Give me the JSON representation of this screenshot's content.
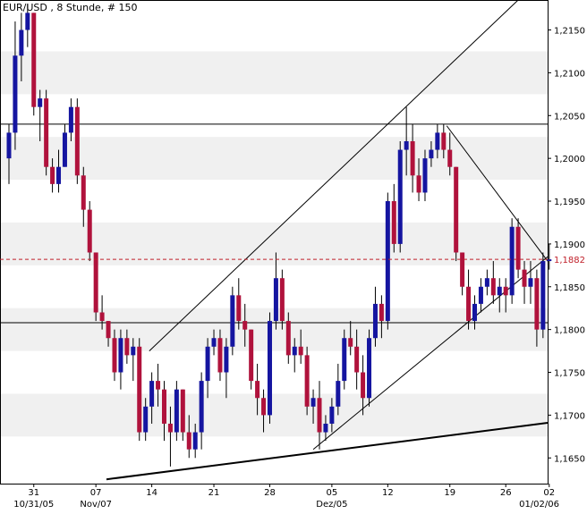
{
  "chart_data": {
    "type": "candlestick",
    "title": "EUR/USD , 8 Stunde, # 150",
    "price_label": "1,1882",
    "current_price": 1.1882,
    "ylim": [
      1.162,
      1.2185
    ],
    "y_ticks": [
      1.165,
      1.17,
      1.175,
      1.18,
      1.185,
      1.19,
      1.195,
      1.2,
      1.205,
      1.21,
      1.215
    ],
    "y_tick_labels": [
      "1,1650",
      "1,1700",
      "1,1750",
      "1,1800",
      "1,1850",
      "1,1900",
      "1,1950",
      "1,2000",
      "1,2050",
      "1,2100",
      "1,2150"
    ],
    "x_tick_labels": [
      {
        "text": "31",
        "bar": 4
      },
      {
        "text": "07",
        "bar": 14
      },
      {
        "text": "14",
        "bar": 23
      },
      {
        "text": "21",
        "bar": 33
      },
      {
        "text": "28",
        "bar": 42
      },
      {
        "text": "05",
        "bar": 52
      },
      {
        "text": "12",
        "bar": 61
      },
      {
        "text": "19",
        "bar": 71
      },
      {
        "text": "26",
        "bar": 80
      },
      {
        "text": "02",
        "bar": 87
      }
    ],
    "x_period_labels": [
      {
        "text": "10/31/05",
        "bar": 4
      },
      {
        "text": "Nov/07",
        "bar": 14
      },
      {
        "text": "Dez/05",
        "bar": 52
      },
      {
        "text": "01/02/06",
        "bar": 87
      }
    ],
    "horizontal_levels": [
      1.204,
      1.1808
    ],
    "grid": "alternating bands",
    "colors": {
      "up": "#1515a0",
      "down": "#b0123c",
      "wick": "#000000",
      "price_line": "#c0202a",
      "band": "#f0f0f0",
      "line": "#000000"
    },
    "candles": [
      [
        1.2,
        1.204,
        1.197,
        1.203
      ],
      [
        1.203,
        1.216,
        1.201,
        1.212
      ],
      [
        1.212,
        1.217,
        1.209,
        1.215
      ],
      [
        1.215,
        1.218,
        1.213,
        1.217
      ],
      [
        1.217,
        1.217,
        1.205,
        1.206
      ],
      [
        1.206,
        1.208,
        1.202,
        1.207
      ],
      [
        1.207,
        1.208,
        1.198,
        1.199
      ],
      [
        1.199,
        1.2,
        1.196,
        1.197
      ],
      [
        1.197,
        1.201,
        1.196,
        1.199
      ],
      [
        1.199,
        1.204,
        1.199,
        1.203
      ],
      [
        1.203,
        1.207,
        1.202,
        1.206
      ],
      [
        1.206,
        1.207,
        1.197,
        1.198
      ],
      [
        1.198,
        1.199,
        1.192,
        1.194
      ],
      [
        1.194,
        1.195,
        1.188,
        1.189
      ],
      [
        1.189,
        1.189,
        1.181,
        1.182
      ],
      [
        1.182,
        1.184,
        1.18,
        1.181
      ],
      [
        1.181,
        1.181,
        1.178,
        1.179
      ],
      [
        1.179,
        1.18,
        1.174,
        1.175
      ],
      [
        1.175,
        1.18,
        1.173,
        1.179
      ],
      [
        1.179,
        1.18,
        1.176,
        1.177
      ],
      [
        1.177,
        1.179,
        1.174,
        1.178
      ],
      [
        1.178,
        1.179,
        1.167,
        1.168
      ],
      [
        1.168,
        1.172,
        1.167,
        1.171
      ],
      [
        1.171,
        1.175,
        1.169,
        1.174
      ],
      [
        1.174,
        1.176,
        1.171,
        1.173
      ],
      [
        1.173,
        1.174,
        1.167,
        1.169
      ],
      [
        1.169,
        1.171,
        1.164,
        1.168
      ],
      [
        1.168,
        1.174,
        1.167,
        1.173
      ],
      [
        1.173,
        1.173,
        1.167,
        1.168
      ],
      [
        1.168,
        1.17,
        1.165,
        1.166
      ],
      [
        1.166,
        1.169,
        1.165,
        1.168
      ],
      [
        1.168,
        1.175,
        1.166,
        1.174
      ],
      [
        1.174,
        1.179,
        1.172,
        1.178
      ],
      [
        1.178,
        1.18,
        1.177,
        1.179
      ],
      [
        1.179,
        1.18,
        1.174,
        1.175
      ],
      [
        1.175,
        1.179,
        1.172,
        1.178
      ],
      [
        1.178,
        1.185,
        1.177,
        1.184
      ],
      [
        1.184,
        1.186,
        1.18,
        1.181
      ],
      [
        1.181,
        1.183,
        1.178,
        1.18
      ],
      [
        1.18,
        1.18,
        1.173,
        1.174
      ],
      [
        1.174,
        1.176,
        1.17,
        1.172
      ],
      [
        1.172,
        1.173,
        1.168,
        1.17
      ],
      [
        1.17,
        1.182,
        1.169,
        1.181
      ],
      [
        1.181,
        1.189,
        1.18,
        1.186
      ],
      [
        1.186,
        1.187,
        1.18,
        1.181
      ],
      [
        1.181,
        1.182,
        1.176,
        1.177
      ],
      [
        1.177,
        1.179,
        1.175,
        1.178
      ],
      [
        1.178,
        1.18,
        1.176,
        1.177
      ],
      [
        1.177,
        1.178,
        1.17,
        1.171
      ],
      [
        1.171,
        1.173,
        1.169,
        1.172
      ],
      [
        1.172,
        1.174,
        1.166,
        1.168
      ],
      [
        1.168,
        1.17,
        1.167,
        1.169
      ],
      [
        1.169,
        1.172,
        1.168,
        1.171
      ],
      [
        1.171,
        1.176,
        1.17,
        1.174
      ],
      [
        1.174,
        1.18,
        1.173,
        1.179
      ],
      [
        1.179,
        1.181,
        1.177,
        1.178
      ],
      [
        1.178,
        1.18,
        1.173,
        1.175
      ],
      [
        1.175,
        1.177,
        1.17,
        1.172
      ],
      [
        1.172,
        1.18,
        1.171,
        1.179
      ],
      [
        1.179,
        1.185,
        1.178,
        1.183
      ],
      [
        1.183,
        1.184,
        1.179,
        1.181
      ],
      [
        1.181,
        1.196,
        1.18,
        1.195
      ],
      [
        1.195,
        1.197,
        1.189,
        1.19
      ],
      [
        1.19,
        1.202,
        1.189,
        1.201
      ],
      [
        1.201,
        1.206,
        1.198,
        1.202
      ],
      [
        1.202,
        1.204,
        1.196,
        1.198
      ],
      [
        1.198,
        1.2,
        1.195,
        1.196
      ],
      [
        1.196,
        1.201,
        1.195,
        1.2
      ],
      [
        1.2,
        1.202,
        1.199,
        1.201
      ],
      [
        1.201,
        1.204,
        1.2,
        1.203
      ],
      [
        1.203,
        1.204,
        1.2,
        1.201
      ],
      [
        1.201,
        1.203,
        1.198,
        1.199
      ],
      [
        1.199,
        1.199,
        1.188,
        1.189
      ],
      [
        1.189,
        1.189,
        1.184,
        1.185
      ],
      [
        1.185,
        1.187,
        1.18,
        1.181
      ],
      [
        1.181,
        1.184,
        1.18,
        1.183
      ],
      [
        1.183,
        1.186,
        1.182,
        1.185
      ],
      [
        1.185,
        1.187,
        1.184,
        1.186
      ],
      [
        1.186,
        1.188,
        1.183,
        1.184
      ],
      [
        1.184,
        1.186,
        1.182,
        1.185
      ],
      [
        1.185,
        1.186,
        1.182,
        1.184
      ],
      [
        1.184,
        1.193,
        1.183,
        1.192
      ],
      [
        1.192,
        1.193,
        1.186,
        1.187
      ],
      [
        1.187,
        1.188,
        1.183,
        1.185
      ],
      [
        1.185,
        1.188,
        1.183,
        1.186
      ],
      [
        1.186,
        1.187,
        1.178,
        1.18
      ],
      [
        1.18,
        1.189,
        1.179,
        1.188
      ],
      [
        1.188,
        1.19,
        1.187,
        1.1882
      ]
    ]
  }
}
